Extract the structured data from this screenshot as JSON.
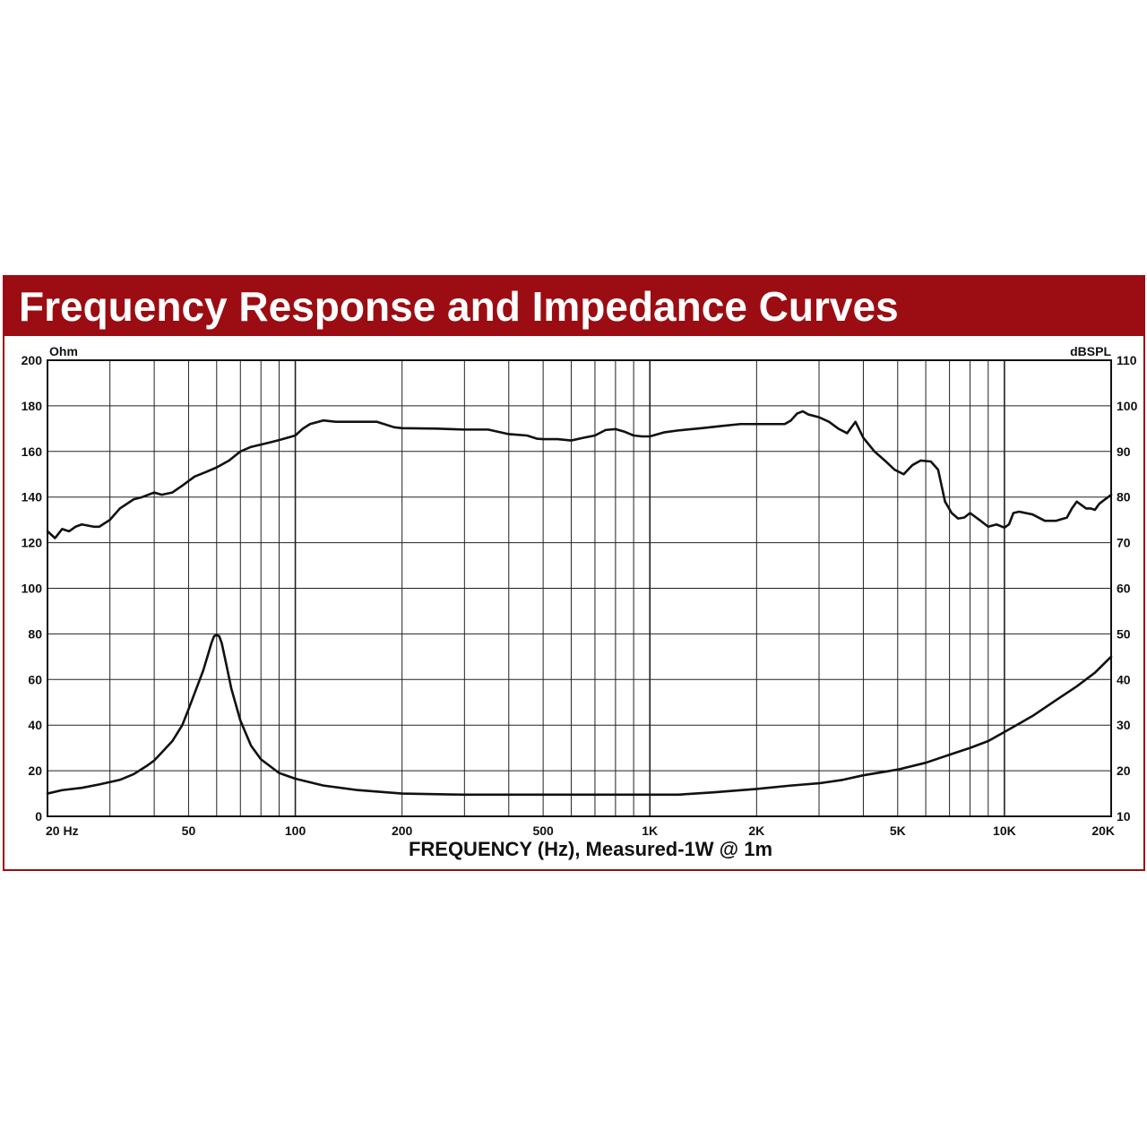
{
  "colors": {
    "title_bar": "#9b0d12",
    "title_text": "#ffffff",
    "curves": "#111111",
    "grid": "#222222"
  },
  "chart_data": {
    "type": "line",
    "title": "Frequency Response and Impedance Curves",
    "xlabel": "FREQUENCY (Hz), Measured-1W @ 1m",
    "x_scale": "log",
    "xlim": [
      20,
      20000
    ],
    "x_ticks": [
      {
        "value": 20,
        "label": "20 Hz"
      },
      {
        "value": 50,
        "label": "50"
      },
      {
        "value": 100,
        "label": "100"
      },
      {
        "value": 200,
        "label": "200"
      },
      {
        "value": 500,
        "label": "500"
      },
      {
        "value": 1000,
        "label": "1K"
      },
      {
        "value": 2000,
        "label": "2K"
      },
      {
        "value": 5000,
        "label": "5K"
      },
      {
        "value": 10000,
        "label": "10K"
      },
      {
        "value": 20000,
        "label": "20K"
      }
    ],
    "y_left": {
      "unit": "Ohm",
      "ylim": [
        0,
        200
      ],
      "ticks": [
        0,
        20,
        40,
        60,
        80,
        100,
        120,
        140,
        160,
        180,
        200
      ]
    },
    "y_right": {
      "unit": "dBSPL",
      "ylim": [
        10,
        110
      ],
      "ticks": [
        10,
        20,
        30,
        40,
        50,
        60,
        70,
        80,
        90,
        100,
        110
      ]
    },
    "grid": true,
    "series": [
      {
        "axis": "right",
        "x": [
          20,
          21,
          22,
          23,
          24,
          25,
          27,
          28,
          30,
          32,
          35,
          37,
          40,
          42,
          45,
          48,
          52,
          56,
          60,
          65,
          70,
          75,
          80,
          85,
          90,
          95,
          100,
          105,
          110,
          120,
          130,
          150,
          170,
          190,
          200,
          250,
          300,
          350,
          400,
          450,
          480,
          500,
          550,
          600,
          650,
          700,
          750,
          800,
          850,
          900,
          950,
          1000,
          1100,
          1200,
          1400,
          1600,
          1800,
          2000,
          2200,
          2400,
          2500,
          2600,
          2700,
          2800,
          3000,
          3200,
          3400,
          3600,
          3800,
          4000,
          4300,
          4600,
          4900,
          5200,
          5500,
          5800,
          6200,
          6500,
          6800,
          7100,
          7400,
          7700,
          8000,
          8500,
          9000,
          9500,
          10000,
          10300,
          10600,
          11000,
          12000,
          13000,
          14000,
          15000,
          15500,
          16000,
          17000,
          17500,
          18000,
          18500,
          19000,
          20000
        ],
        "values": [
          72.5,
          71,
          73,
          72.5,
          73.5,
          74,
          73.5,
          73.5,
          75,
          77.5,
          79.5,
          80,
          81,
          80.5,
          81,
          82.5,
          84.5,
          85.5,
          86.5,
          88,
          90,
          91,
          91.5,
          92,
          92.5,
          93,
          93.5,
          95,
          96,
          96.8,
          96.5,
          96.5,
          96.5,
          95.3,
          95.1,
          95,
          94.8,
          94.8,
          93.8,
          93.5,
          92.8,
          92.7,
          92.7,
          92.4,
          93,
          93.5,
          94.7,
          94.9,
          94.3,
          93.5,
          93.3,
          93.3,
          94.2,
          94.6,
          95.1,
          95.6,
          96,
          96,
          96,
          96,
          96.8,
          98.3,
          98.8,
          98.1,
          97.5,
          96.5,
          95,
          94,
          96.5,
          93,
          90,
          88,
          86,
          85,
          87,
          88,
          87.8,
          86,
          79,
          76.5,
          75.3,
          75.5,
          76.5,
          75,
          73.5,
          74,
          73.3,
          74,
          76.5,
          76.8,
          76.2,
          74.8,
          74.8,
          75.5,
          77.5,
          79,
          77.5,
          77.5,
          77.2,
          78.5,
          79.2,
          80.5
        ]
      },
      {
        "axis": "left",
        "x": [
          20,
          22,
          25,
          28,
          32,
          35,
          38,
          40,
          42,
          45,
          48,
          50,
          52,
          55,
          57,
          58,
          59,
          60,
          61,
          62,
          64,
          66,
          70,
          75,
          80,
          90,
          100,
          120,
          150,
          200,
          300,
          500,
          700,
          1000,
          1200,
          1500,
          2000,
          2500,
          3000,
          3500,
          4000,
          5000,
          6000,
          7000,
          8000,
          9000,
          10000,
          12000,
          14000,
          16000,
          18000,
          20000
        ],
        "values": [
          10,
          11.5,
          12.5,
          14,
          16,
          18.5,
          22,
          24.5,
          28,
          33,
          40,
          47,
          54,
          64,
          72,
          76,
          79,
          79.5,
          79,
          76,
          66,
          56,
          42,
          31,
          25,
          19,
          16.5,
          13.5,
          11.5,
          10,
          9.5,
          9.5,
          9.5,
          9.5,
          9.5,
          10.5,
          12,
          13.5,
          14.5,
          16,
          18,
          20.5,
          23.5,
          27,
          30,
          33,
          37,
          44,
          51,
          57,
          63,
          70
        ]
      }
    ]
  }
}
